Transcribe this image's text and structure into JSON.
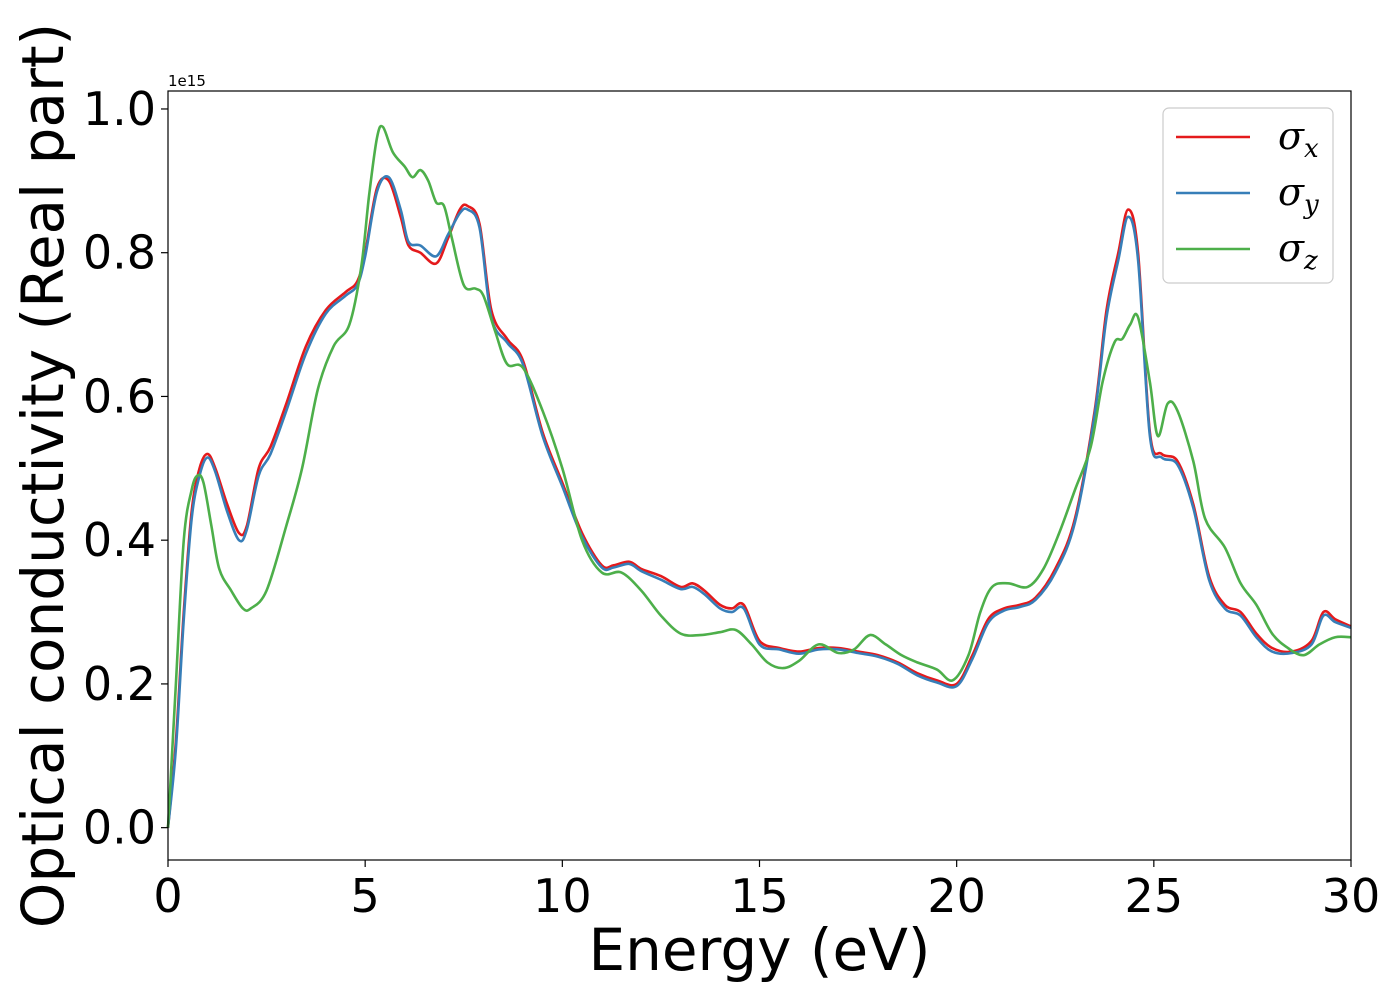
{
  "chart_data": {
    "type": "line",
    "xlabel": "Energy (eV)",
    "ylabel": "Optical conductivity (Real part)",
    "y_offset_text": "1e15",
    "xlim": [
      0,
      30
    ],
    "ylim": [
      -0.045,
      1.025
    ],
    "x_ticks": [
      0,
      5,
      10,
      15,
      20,
      25,
      30
    ],
    "x_tick_labels": [
      "0",
      "5",
      "10",
      "15",
      "20",
      "25",
      "30"
    ],
    "y_ticks": [
      0.0,
      0.2,
      0.4,
      0.6,
      0.8,
      1.0
    ],
    "y_tick_labels": [
      "0.0",
      "0.2",
      "0.4",
      "0.6",
      "0.8",
      "1.0"
    ],
    "grid": false,
    "legend_position": "top-right",
    "series": [
      {
        "name": "σ",
        "subscript": "x",
        "color": "#e41a1c",
        "x": [
          0.0,
          0.2,
          0.4,
          0.6,
          0.8,
          1.0,
          1.2,
          1.5,
          1.8,
          2.0,
          2.3,
          2.6,
          3.0,
          3.5,
          4.0,
          4.5,
          4.8,
          5.0,
          5.3,
          5.6,
          5.9,
          6.1,
          6.4,
          6.8,
          7.1,
          7.4,
          7.6,
          7.9,
          8.2,
          8.6,
          9.0,
          9.5,
          10.0,
          10.5,
          11.0,
          11.3,
          11.7,
          12.0,
          12.5,
          13.0,
          13.3,
          13.6,
          14.0,
          14.3,
          14.6,
          15.0,
          15.5,
          16.0,
          16.5,
          17.0,
          17.5,
          18.0,
          18.5,
          19.0,
          19.5,
          20.0,
          20.4,
          20.8,
          21.2,
          21.6,
          22.0,
          22.5,
          23.0,
          23.5,
          23.8,
          24.1,
          24.35,
          24.6,
          24.9,
          25.2,
          25.6,
          26.0,
          26.4,
          26.8,
          27.2,
          27.6,
          28.0,
          28.5,
          29.0,
          29.3,
          29.6,
          30.0
        ],
        "values": [
          0.0,
          0.12,
          0.3,
          0.44,
          0.5,
          0.52,
          0.5,
          0.45,
          0.41,
          0.42,
          0.5,
          0.53,
          0.59,
          0.67,
          0.72,
          0.745,
          0.76,
          0.8,
          0.89,
          0.9,
          0.85,
          0.81,
          0.8,
          0.785,
          0.82,
          0.86,
          0.865,
          0.84,
          0.72,
          0.68,
          0.65,
          0.55,
          0.48,
          0.41,
          0.365,
          0.365,
          0.37,
          0.36,
          0.35,
          0.335,
          0.34,
          0.33,
          0.31,
          0.305,
          0.31,
          0.26,
          0.25,
          0.245,
          0.25,
          0.25,
          0.245,
          0.24,
          0.23,
          0.215,
          0.205,
          0.2,
          0.24,
          0.29,
          0.305,
          0.31,
          0.32,
          0.36,
          0.43,
          0.58,
          0.72,
          0.8,
          0.86,
          0.8,
          0.55,
          0.52,
          0.51,
          0.45,
          0.35,
          0.31,
          0.3,
          0.27,
          0.25,
          0.245,
          0.26,
          0.3,
          0.29,
          0.28
        ]
      },
      {
        "name": "σ",
        "subscript": "y",
        "color": "#377eb8",
        "x": [
          0.0,
          0.2,
          0.4,
          0.6,
          0.8,
          1.0,
          1.2,
          1.5,
          1.8,
          2.0,
          2.3,
          2.6,
          3.0,
          3.5,
          4.0,
          4.5,
          4.8,
          5.0,
          5.3,
          5.6,
          5.9,
          6.1,
          6.4,
          6.8,
          7.1,
          7.4,
          7.6,
          7.9,
          8.2,
          8.6,
          9.0,
          9.5,
          10.0,
          10.5,
          11.0,
          11.3,
          11.7,
          12.0,
          12.5,
          13.0,
          13.3,
          13.6,
          14.0,
          14.3,
          14.6,
          15.0,
          15.5,
          16.0,
          16.5,
          17.0,
          17.5,
          18.0,
          18.5,
          19.0,
          19.5,
          20.0,
          20.4,
          20.8,
          21.2,
          21.6,
          22.0,
          22.5,
          23.0,
          23.5,
          23.8,
          24.1,
          24.35,
          24.6,
          24.9,
          25.2,
          25.6,
          26.0,
          26.4,
          26.8,
          27.2,
          27.6,
          28.0,
          28.5,
          29.0,
          29.3,
          29.6,
          30.0
        ],
        "values": [
          0.0,
          0.11,
          0.29,
          0.43,
          0.49,
          0.515,
          0.495,
          0.44,
          0.4,
          0.415,
          0.49,
          0.52,
          0.58,
          0.66,
          0.715,
          0.74,
          0.755,
          0.795,
          0.885,
          0.905,
          0.86,
          0.815,
          0.81,
          0.795,
          0.825,
          0.855,
          0.86,
          0.835,
          0.71,
          0.675,
          0.645,
          0.545,
          0.475,
          0.405,
          0.362,
          0.362,
          0.367,
          0.357,
          0.345,
          0.332,
          0.335,
          0.325,
          0.305,
          0.3,
          0.305,
          0.255,
          0.248,
          0.242,
          0.248,
          0.248,
          0.243,
          0.238,
          0.228,
          0.212,
          0.202,
          0.197,
          0.235,
          0.285,
          0.302,
          0.307,
          0.317,
          0.355,
          0.425,
          0.575,
          0.71,
          0.79,
          0.85,
          0.79,
          0.545,
          0.515,
          0.505,
          0.445,
          0.345,
          0.305,
          0.295,
          0.265,
          0.245,
          0.243,
          0.255,
          0.295,
          0.286,
          0.278
        ]
      },
      {
        "name": "σ",
        "subscript": "z",
        "color": "#4daf4a",
        "x": [
          0.0,
          0.2,
          0.4,
          0.6,
          0.75,
          0.9,
          1.1,
          1.3,
          1.6,
          1.9,
          2.1,
          2.5,
          3.0,
          3.4,
          3.8,
          4.2,
          4.6,
          4.9,
          5.1,
          5.3,
          5.45,
          5.7,
          6.0,
          6.2,
          6.4,
          6.6,
          6.8,
          7.0,
          7.2,
          7.5,
          7.8,
          8.0,
          8.3,
          8.6,
          9.0,
          9.5,
          10.0,
          10.5,
          11.0,
          11.5,
          12.0,
          12.5,
          13.0,
          13.5,
          14.0,
          14.4,
          14.8,
          15.2,
          15.6,
          16.0,
          16.5,
          17.0,
          17.4,
          17.8,
          18.2,
          18.6,
          19.0,
          19.5,
          19.9,
          20.3,
          20.6,
          20.9,
          21.3,
          21.8,
          22.2,
          22.6,
          23.0,
          23.4,
          23.7,
          24.0,
          24.2,
          24.4,
          24.6,
          24.9,
          25.1,
          25.35,
          25.6,
          26.0,
          26.3,
          26.8,
          27.2,
          27.6,
          28.0,
          28.4,
          28.8,
          29.2,
          29.6,
          30.0
        ],
        "values": [
          0.0,
          0.2,
          0.4,
          0.47,
          0.49,
          0.48,
          0.42,
          0.36,
          0.33,
          0.305,
          0.305,
          0.33,
          0.42,
          0.5,
          0.61,
          0.67,
          0.7,
          0.78,
          0.88,
          0.96,
          0.975,
          0.94,
          0.92,
          0.905,
          0.915,
          0.9,
          0.87,
          0.865,
          0.82,
          0.755,
          0.75,
          0.74,
          0.69,
          0.645,
          0.64,
          0.58,
          0.5,
          0.4,
          0.355,
          0.355,
          0.33,
          0.295,
          0.27,
          0.268,
          0.272,
          0.275,
          0.255,
          0.23,
          0.222,
          0.232,
          0.255,
          0.243,
          0.248,
          0.268,
          0.255,
          0.24,
          0.23,
          0.22,
          0.205,
          0.24,
          0.3,
          0.335,
          0.34,
          0.335,
          0.36,
          0.41,
          0.47,
          0.53,
          0.62,
          0.675,
          0.68,
          0.7,
          0.71,
          0.62,
          0.545,
          0.59,
          0.58,
          0.51,
          0.43,
          0.39,
          0.34,
          0.31,
          0.27,
          0.25,
          0.24,
          0.255,
          0.265,
          0.265
        ]
      }
    ]
  }
}
